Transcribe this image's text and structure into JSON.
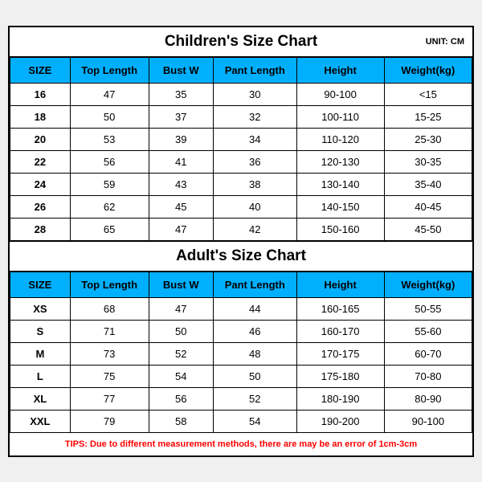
{
  "children": {
    "title": "Children's Size Chart",
    "unit": "UNIT: CM",
    "columns": [
      "SIZE",
      "Top Length",
      "Bust W",
      "Pant Length",
      "Height",
      "Weight(kg)"
    ],
    "rows": [
      [
        "16",
        "47",
        "35",
        "30",
        "90-100",
        "<15"
      ],
      [
        "18",
        "50",
        "37",
        "32",
        "100-110",
        "15-25"
      ],
      [
        "20",
        "53",
        "39",
        "34",
        "110-120",
        "25-30"
      ],
      [
        "22",
        "56",
        "41",
        "36",
        "120-130",
        "30-35"
      ],
      [
        "24",
        "59",
        "43",
        "38",
        "130-140",
        "35-40"
      ],
      [
        "26",
        "62",
        "45",
        "40",
        "140-150",
        "40-45"
      ],
      [
        "28",
        "65",
        "47",
        "42",
        "150-160",
        "45-50"
      ]
    ]
  },
  "adult": {
    "title": "Adult's Size Chart",
    "columns": [
      "SIZE",
      "Top Length",
      "Bust W",
      "Pant Length",
      "Height",
      "Weight(kg)"
    ],
    "rows": [
      [
        "XS",
        "68",
        "47",
        "44",
        "160-165",
        "50-55"
      ],
      [
        "S",
        "71",
        "50",
        "46",
        "160-170",
        "55-60"
      ],
      [
        "M",
        "73",
        "52",
        "48",
        "170-175",
        "60-70"
      ],
      [
        "L",
        "75",
        "54",
        "50",
        "175-180",
        "70-80"
      ],
      [
        "XL",
        "77",
        "56",
        "52",
        "180-190",
        "80-90"
      ],
      [
        "XXL",
        "79",
        "58",
        "54",
        "190-200",
        "90-100"
      ]
    ]
  },
  "tips": "TIPS: Due to different measurement methods, there are may be an error of 1cm-3cm",
  "colors": {
    "header_bg": "#00b0ff",
    "border": "#000000",
    "tips_color": "#ff0000",
    "background": "#ffffff"
  }
}
